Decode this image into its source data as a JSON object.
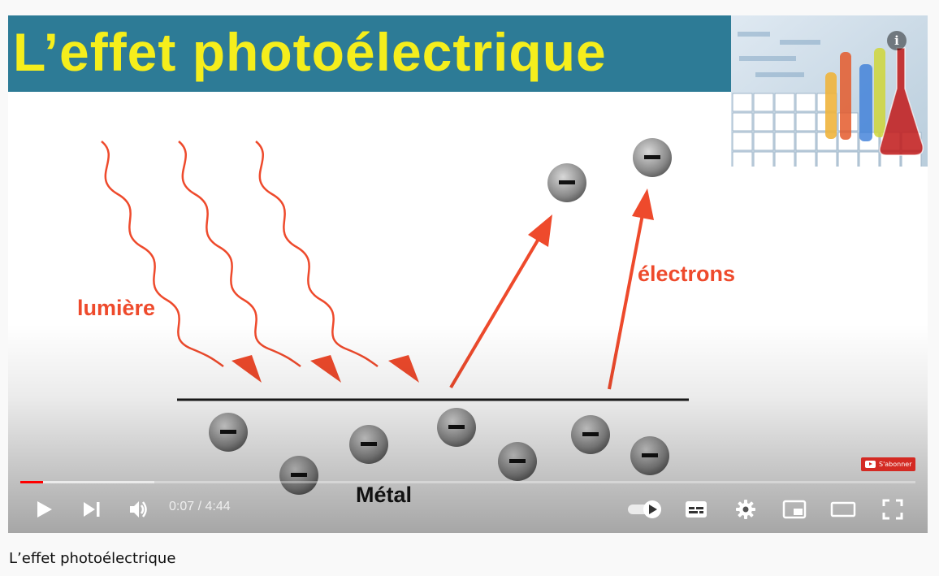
{
  "video": {
    "banner_title": "L’effet photoélectrique",
    "diagram": {
      "light_label": "lumière",
      "electrons_label": "électrons",
      "metal_label": "Métal"
    },
    "subscribe_label": "S'abonner",
    "info_icon": "info-icon"
  },
  "controls": {
    "current_time": "0:07",
    "duration": "4:44",
    "time_display": "0:07 / 4:44",
    "progress_played_fraction": 0.025,
    "progress_loaded_fraction": 0.15,
    "icons": [
      "play-icon",
      "next-icon",
      "volume-icon",
      "autoplay-toggle-icon",
      "subtitles-icon",
      "settings-icon",
      "miniplayer-icon",
      "theater-mode-icon",
      "fullscreen-icon"
    ]
  },
  "page": {
    "video_title": "L’effet photoélectrique"
  },
  "colors": {
    "banner_bg": "#2d7b96",
    "banner_text": "#f5ee1c",
    "arrow_red": "#ee4a2c",
    "progress_red": "#ff0000"
  }
}
